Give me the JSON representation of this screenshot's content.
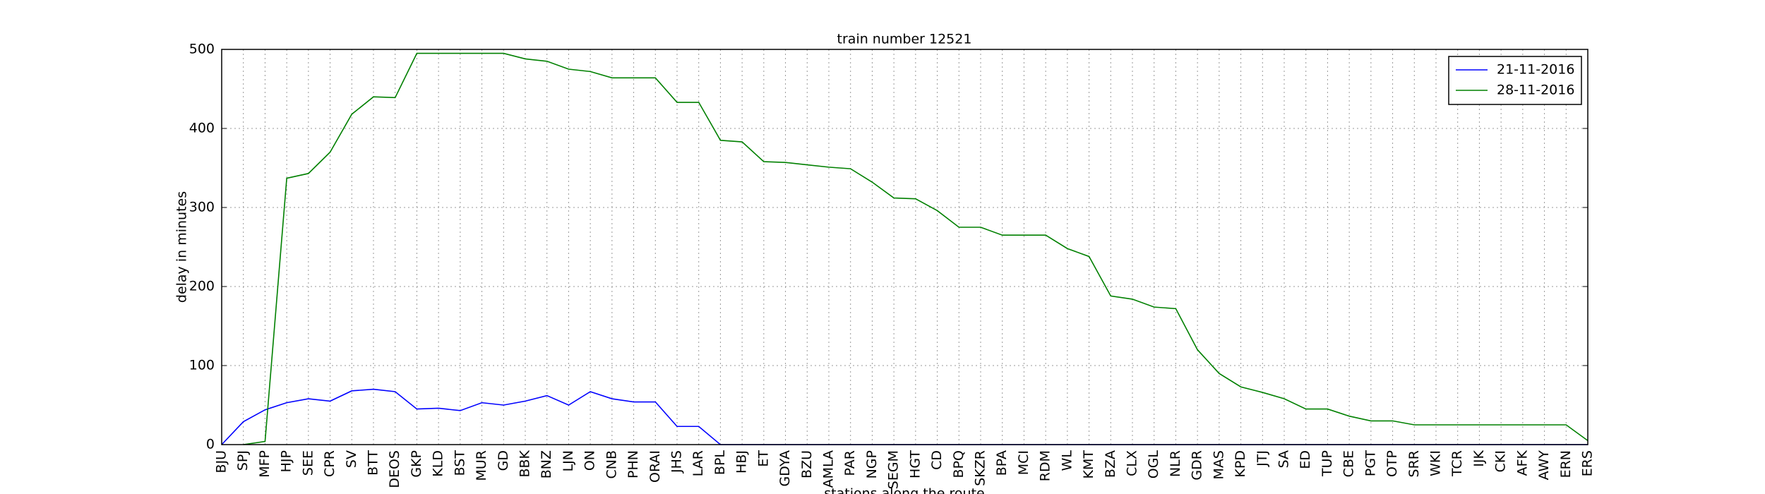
{
  "chart_data": {
    "type": "line",
    "title": "train number 12521",
    "x_label": "stations along the route",
    "y_label": "delay in minutes",
    "categories": [
      "BJU",
      "SPJ",
      "MFP",
      "HJP",
      "SEE",
      "CPR",
      "SV",
      "BTT",
      "DEOS",
      "GKP",
      "KLD",
      "BST",
      "MUR",
      "GD",
      "BBK",
      "BNZ",
      "LJN",
      "ON",
      "CNB",
      "PHN",
      "ORAI",
      "JHS",
      "LAR",
      "BPL",
      "HBJ",
      "ET",
      "GDYA",
      "BZU",
      "AMLA",
      "PAR",
      "NGP",
      "SEGM",
      "HGT",
      "CD",
      "BPQ",
      "SKZR",
      "BPA",
      "MCI",
      "RDM",
      "WL",
      "KMT",
      "BZA",
      "CLX",
      "OGL",
      "NLR",
      "GDR",
      "MAS",
      "KPD",
      "JTJ",
      "SA",
      "ED",
      "TUP",
      "CBE",
      "PGT",
      "OTP",
      "SRR",
      "WKI",
      "TCR",
      "IJK",
      "CKI",
      "AFK",
      "AWY",
      "ERN",
      "ERS"
    ],
    "series": [
      {
        "name": "21-11-2016",
        "color": "#0000ff",
        "values": [
          0,
          29,
          44,
          53,
          58,
          55,
          68,
          70,
          67,
          45,
          46,
          43,
          53,
          50,
          55,
          62,
          50,
          67,
          58,
          54,
          54,
          23,
          23,
          0,
          0,
          0,
          0,
          0,
          0,
          0,
          0,
          0,
          0,
          0,
          0,
          0,
          0,
          0,
          0,
          0,
          0,
          0,
          0,
          0,
          0,
          0,
          0,
          0,
          0,
          0,
          0,
          0,
          0,
          0,
          0,
          0,
          0,
          0,
          0,
          0,
          0,
          0,
          0,
          0
        ]
      },
      {
        "name": "28-11-2016",
        "color": "#008000",
        "values": [
          null,
          0,
          4,
          337,
          343,
          370,
          418,
          440,
          439,
          495,
          495,
          495,
          495,
          495,
          488,
          485,
          475,
          472,
          464,
          464,
          464,
          433,
          433,
          385,
          383,
          358,
          357,
          354,
          351,
          349,
          332,
          312,
          311,
          296,
          275,
          275,
          265,
          265,
          265,
          248,
          238,
          188,
          184,
          174,
          172,
          120,
          90,
          73,
          66,
          58,
          45,
          45,
          36,
          30,
          30,
          25,
          25,
          25,
          25,
          25,
          25,
          25,
          25,
          5
        ]
      }
    ],
    "ylim": [
      0,
      500
    ],
    "yticks": [
      0,
      100,
      200,
      300,
      400,
      500
    ],
    "grid": true,
    "legend": "upper right"
  }
}
